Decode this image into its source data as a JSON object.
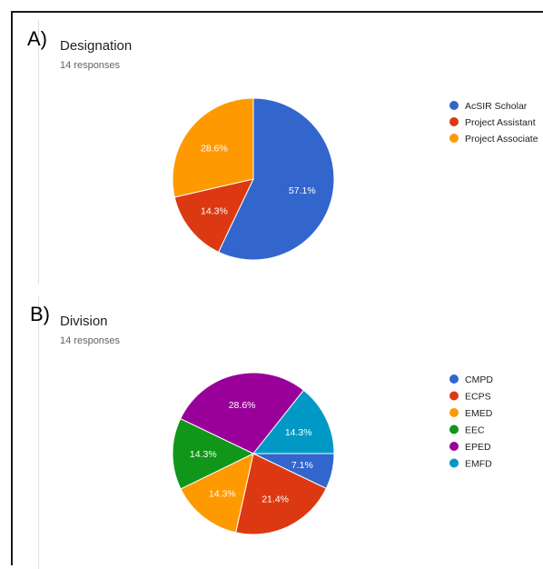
{
  "chart_data": [
    {
      "type": "pie",
      "panel": "A)",
      "title": "Designation",
      "subtitle": "14 responses",
      "legend_position": "right",
      "slices": [
        {
          "label": "AcSIR Scholar",
          "value": 57.1,
          "display": "57.1%",
          "color": "#3366cc"
        },
        {
          "label": "Project Assistant",
          "value": 14.3,
          "display": "14.3%",
          "color": "#dc3912"
        },
        {
          "label": "Project Associate",
          "value": 28.6,
          "display": "28.6%",
          "color": "#ff9900"
        }
      ]
    },
    {
      "type": "pie",
      "panel": "B)",
      "title": "Division",
      "subtitle": "14 responses",
      "legend_position": "right",
      "slices": [
        {
          "label": "CMPD",
          "value": 7.1,
          "display": "7.1%",
          "color": "#3366cc"
        },
        {
          "label": "ECPS",
          "value": 21.4,
          "display": "21.4%",
          "color": "#dc3912"
        },
        {
          "label": "EMED",
          "value": 14.3,
          "display": "14.3%",
          "color": "#ff9900"
        },
        {
          "label": "EEC",
          "value": 14.3,
          "display": "14.3%",
          "color": "#109618"
        },
        {
          "label": "EPED",
          "value": 28.6,
          "display": "28.6%",
          "color": "#990099"
        },
        {
          "label": "EMFD",
          "value": 14.3,
          "display": "14.3%",
          "color": "#0099c6"
        }
      ]
    }
  ]
}
